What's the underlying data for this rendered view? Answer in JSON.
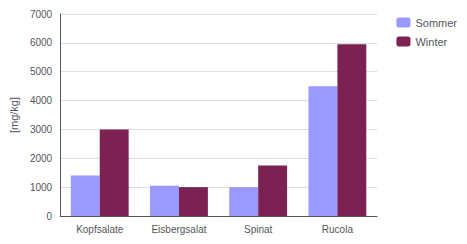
{
  "chart_data": {
    "type": "bar",
    "categories": [
      "Kopfsalate",
      "Eisbergsalat",
      "Spinat",
      "Rucola"
    ],
    "series": [
      {
        "name": "Sommer",
        "color": "#9999FF",
        "values": [
          1400,
          1050,
          1000,
          4500
        ]
      },
      {
        "name": "Winter",
        "color": "#7B2252",
        "values": [
          3000,
          1000,
          1750,
          5950
        ]
      }
    ],
    "ylabel": "[mg/kg]",
    "ylim": [
      0,
      7000
    ],
    "yticks": [
      0,
      1000,
      2000,
      3000,
      4000,
      5000,
      6000,
      7000
    ],
    "grid": true,
    "legend": "right"
  }
}
